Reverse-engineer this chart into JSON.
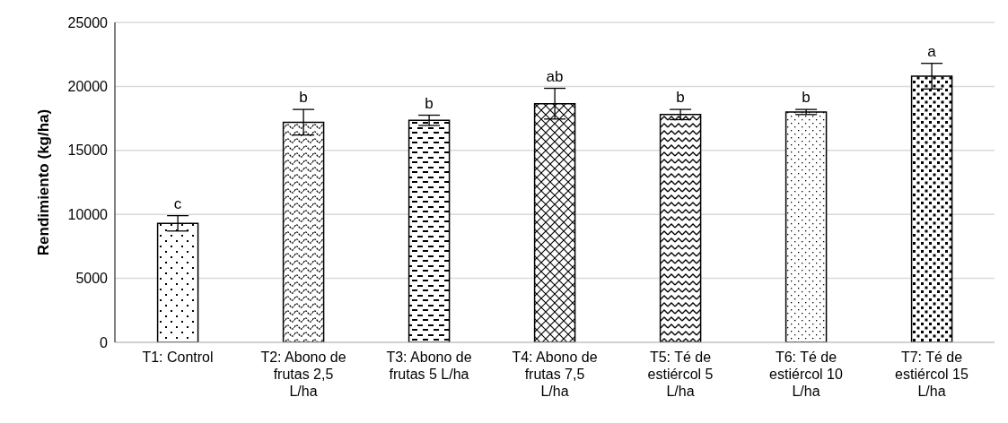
{
  "chart_data": {
    "type": "bar",
    "ylabel": "Rendimiento (kg/ha)",
    "categories": [
      "T1: Control",
      "T2: Abono de frutas 2,5 L/ha",
      "T3: Abono de frutas  5 L/ha",
      "T4: Abono de frutas 7,5 L/ha",
      "T5: Té de estiércol 5 L/ha",
      "T6: Té de estiércol 10 L/ha",
      "T7: Té de estiércol 15 L/ha"
    ],
    "values": [
      9300,
      17200,
      17350,
      18650,
      17800,
      18000,
      20800
    ],
    "errors": [
      600,
      1000,
      400,
      1200,
      400,
      200,
      1000
    ],
    "colors": [
      "#000000",
      "#000000",
      "#000000",
      "#000000",
      "#000000",
      "#000000",
      "#000000"
    ],
    "ylim": [
      0,
      25000
    ],
    "yticks": [
      0,
      5000,
      10000,
      15000,
      20000,
      25000
    ],
    "grid": "y",
    "annotations": [
      {
        "text": "c",
        "x": "T1: Control",
        "y": 9900
      },
      {
        "text": "b",
        "x": "T2: Abono de frutas 2,5 L/ha",
        "y": 18200
      },
      {
        "text": "b",
        "x": "T3: Abono de frutas  5 L/ha",
        "y": 17750
      },
      {
        "text": "ab",
        "x": "T4: Abono de frutas 7,5 L/ha",
        "y": 19850
      },
      {
        "text": "b",
        "x": "T5: Té de estiércol 5 L/ha",
        "y": 18200
      },
      {
        "text": "b",
        "x": "T6: Té de estiércol 10 L/ha",
        "y": 18200
      },
      {
        "text": "a",
        "x": "T7: Té de estiércol 15 L/ha",
        "y": 21800
      }
    ]
  }
}
